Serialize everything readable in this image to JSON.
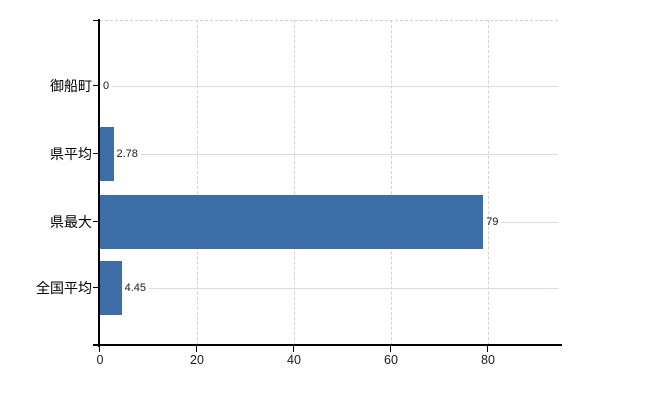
{
  "chart_data": {
    "type": "bar",
    "orientation": "horizontal",
    "title": "",
    "categories": [
      "御船町",
      "県平均",
      "県最大",
      "全国平均"
    ],
    "values": [
      0,
      2.78,
      79,
      4.45
    ],
    "value_labels": [
      "0",
      "2.78",
      "79",
      "4.45"
    ],
    "x_ticks": [
      0,
      20,
      40,
      60,
      80
    ],
    "x_tick_labels": [
      "0",
      "20",
      "40",
      "60",
      "80"
    ],
    "xlim": [
      0,
      94.5
    ],
    "grid": {
      "vertical_dashed": true,
      "top_boundary_dashed": true,
      "category_lines": true
    },
    "legend": "none",
    "colors": {
      "bar": "#3e6ea8",
      "axis": "#000000",
      "dashed_gridline": "#d7cfd4",
      "category_gridline": "#d9ded9",
      "text": "#000000"
    }
  }
}
